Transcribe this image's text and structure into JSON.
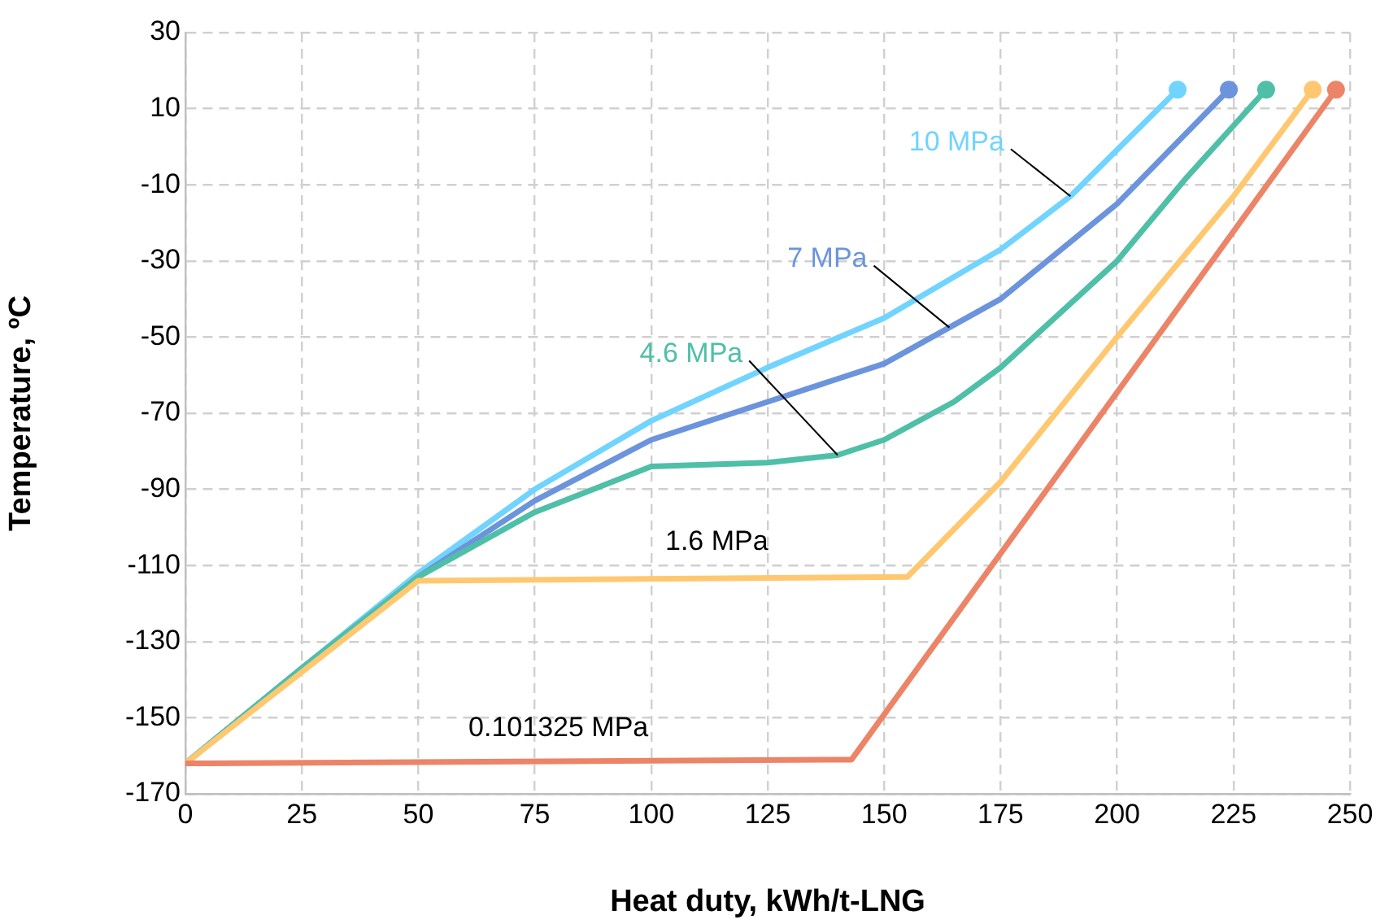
{
  "chart_data": {
    "type": "line",
    "xlabel": "Heat duty, kWh/t-LNG",
    "ylabel": "Temperature, ºC",
    "xlim": [
      0,
      250
    ],
    "xticks": [
      0,
      25,
      50,
      75,
      100,
      125,
      150,
      175,
      200,
      225,
      250
    ],
    "ylim": [
      -170,
      30
    ],
    "yticks": [
      -170,
      -150,
      -130,
      -110,
      -90,
      -70,
      -50,
      -30,
      -10,
      10,
      30
    ],
    "grid": true,
    "legend": false,
    "series": [
      {
        "name": "0.101325 MPa",
        "color": "#ec8468",
        "x": [
          0,
          143,
          247
        ],
        "values": [
          -162,
          -161,
          15
        ]
      },
      {
        "name": "1.6 MPa",
        "color": "#ffc870",
        "x": [
          0,
          25,
          50,
          155,
          175,
          200,
          225,
          242
        ],
        "values": [
          -162,
          -138,
          -114,
          -113,
          -88,
          -50,
          -13,
          15
        ]
      },
      {
        "name": "4.6 MPa",
        "color": "#4fbfa8",
        "x": [
          0,
          25,
          50,
          75,
          100,
          125,
          140,
          150,
          165,
          175,
          200,
          215,
          232
        ],
        "values": [
          -162,
          -137,
          -113,
          -96,
          -84,
          -83,
          -81,
          -77,
          -67,
          -58,
          -30,
          -8,
          15
        ]
      },
      {
        "name": "7 MPa",
        "color": "#6c94dc",
        "x": [
          0,
          25,
          50,
          75,
          100,
          125,
          150,
          175,
          200,
          224
        ],
        "values": [
          -162,
          -137,
          -113,
          -93,
          -77,
          -67,
          -57,
          -40,
          -15,
          15
        ]
      },
      {
        "name": "10 MPa",
        "color": "#70d4ff",
        "x": [
          0,
          25,
          50,
          75,
          100,
          125,
          150,
          175,
          190,
          213
        ],
        "values": [
          -162,
          -137,
          -112,
          -90,
          -72,
          -58,
          -45,
          -27,
          -13,
          15
        ]
      }
    ]
  }
}
